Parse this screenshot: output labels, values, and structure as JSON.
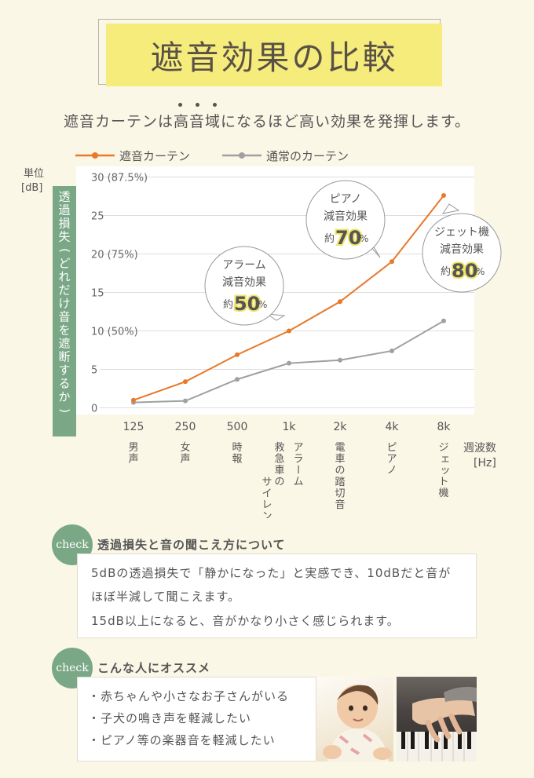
{
  "title": "遮音効果の比較",
  "subtitle": "遮音カーテンは高音域になるほど高い効果を発揮します。",
  "chart_data": {
    "type": "line",
    "x": [
      "125",
      "250",
      "500",
      "1k",
      "2k",
      "4k",
      "8k"
    ],
    "categories": [
      "125",
      "250",
      "500",
      "1k",
      "2k",
      "4k",
      "8k"
    ],
    "category_sublabels": [
      "男声",
      "女声",
      "時報",
      "救急車のサイレン",
      "電車の踏切音",
      "ピアノ",
      "ジェット機"
    ],
    "category_sublabels_extra": [
      "",
      "",
      "",
      "アラーム",
      "",
      "",
      ""
    ],
    "series": [
      {
        "name": "遮音カーテン",
        "color": "#e8782a",
        "values": [
          1.0,
          3.4,
          6.9,
          10.0,
          13.8,
          19.0,
          27.6
        ]
      },
      {
        "name": "通常のカーテン",
        "color": "#a0a0a0",
        "values": [
          0.7,
          0.9,
          3.7,
          5.8,
          6.2,
          7.4,
          11.3
        ]
      }
    ],
    "ylim": [
      0,
      30
    ],
    "yticks": [
      {
        "value": 0,
        "label": "0"
      },
      {
        "value": 5,
        "label": "5"
      },
      {
        "value": 10,
        "label": "10 (50%)"
      },
      {
        "value": 15,
        "label": "15"
      },
      {
        "value": 20,
        "label": "20 (75%)"
      },
      {
        "value": 25,
        "label": "25"
      },
      {
        "value": 30,
        "label": "30 (87.5%)"
      }
    ],
    "unit_label_1": "単位",
    "unit_label_2": "[dB]",
    "ylabel": "透過損失(どれだけ音を遮断するか)",
    "xlabel_1": "週波数",
    "xlabel_2": "[Hz]",
    "grid": true,
    "legend_placement": "top-left",
    "callouts": [
      {
        "line1": "アラーム",
        "line2": "減音効果",
        "prefix": "約",
        "pct": "50",
        "suffix": "%"
      },
      {
        "line1": "ピアノ",
        "line2": "減音効果",
        "prefix": "約",
        "pct": "70",
        "suffix": "%"
      },
      {
        "line1": "ジェット機",
        "line2": "減音効果",
        "prefix": "約",
        "pct": "80",
        "suffix": "%"
      }
    ]
  },
  "check1": {
    "badge": "check",
    "title": "透過損失と音の聞こえ方について",
    "lines": [
      "5dBの透過損失で「静かになった」と実感でき、10dBだと音が",
      "ほぼ半減して聞こえます。",
      "15dB以上になると、音がかなり小さく感じられます。"
    ]
  },
  "check2": {
    "badge": "check",
    "title": "こんな人にオススメ",
    "items": [
      "・赤ちゃんや小さなお子さんがいる",
      "・子犬の鳴き声を軽減したい",
      "・ピアノ等の楽器音を軽減したい"
    ]
  },
  "colors": {
    "accent": "#e8782a",
    "grey": "#a0a0a0",
    "green": "#7aa886",
    "yellow": "#f5ec7c",
    "highlight": "#f0e46a"
  }
}
